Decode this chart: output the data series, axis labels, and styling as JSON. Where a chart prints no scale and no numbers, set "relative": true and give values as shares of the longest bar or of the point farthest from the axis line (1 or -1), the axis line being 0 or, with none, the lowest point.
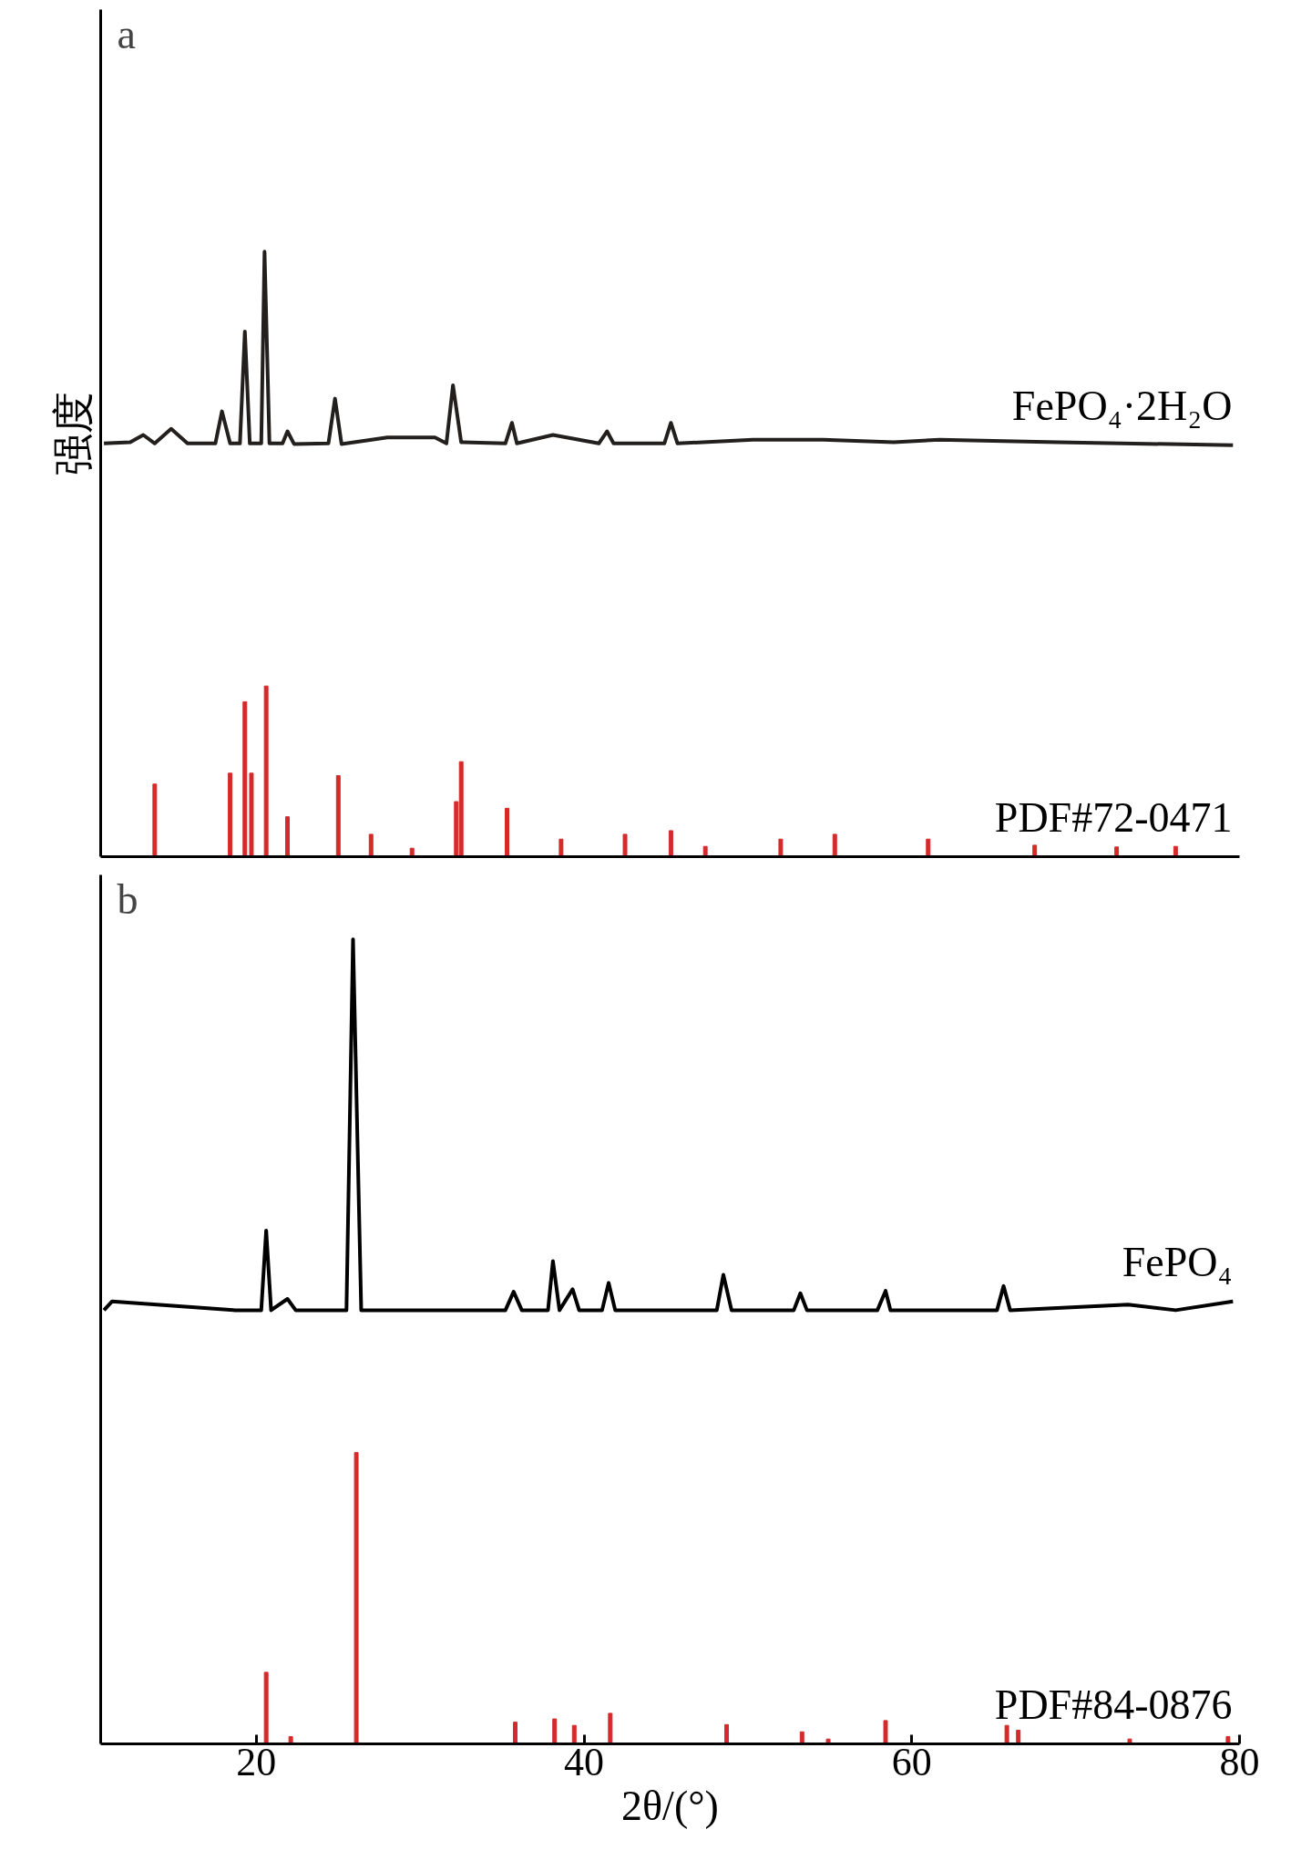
{
  "chart_data": [
    {
      "type": "line",
      "title": "a",
      "ylabel": "强度",
      "relative": true,
      "xlim": [
        10.5,
        80
      ],
      "tick_labels": false,
      "grid": false,
      "series": [
        {
          "name": "FePO₄·2H₂O",
          "color": "#231f1c",
          "x": [
            10.7,
            12.3,
            13.1,
            13.8,
            14.8,
            15.8,
            17.5,
            17.9,
            18.4,
            19.0,
            19.3,
            19.6,
            20.3,
            20.5,
            20.8,
            21.6,
            21.9,
            22.3,
            24.4,
            24.8,
            25.2,
            28.0,
            30.9,
            31.6,
            32.0,
            32.5,
            35.2,
            35.6,
            35.9,
            38.1,
            40.9,
            41.4,
            41.8,
            44.9,
            45.3,
            45.7,
            50.3,
            54.6,
            58.9,
            61.7,
            68.9,
            79.6
          ],
          "values": [
            0.683,
            0.685,
            0.697,
            0.683,
            0.707,
            0.683,
            0.683,
            0.736,
            0.683,
            0.683,
            0.868,
            0.683,
            0.683,
            1.0,
            0.683,
            0.683,
            0.703,
            0.682,
            0.683,
            0.757,
            0.682,
            0.693,
            0.693,
            0.683,
            0.779,
            0.685,
            0.683,
            0.717,
            0.683,
            0.697,
            0.683,
            0.703,
            0.683,
            0.683,
            0.717,
            0.683,
            0.689,
            0.689,
            0.685,
            0.689,
            0.685,
            0.68
          ]
        },
        {
          "name": "PDF#72-0471",
          "type": "bar",
          "color": "#d42a2a",
          "x": [
            13.8,
            18.4,
            19.3,
            19.7,
            20.6,
            21.9,
            25.0,
            27.0,
            29.5,
            32.2,
            32.5,
            35.3,
            38.6,
            42.5,
            45.3,
            47.4,
            52.0,
            55.3,
            61.0,
            67.5,
            72.5,
            76.1
          ],
          "values": [
            0.12,
            0.138,
            0.256,
            0.138,
            0.282,
            0.066,
            0.134,
            0.037,
            0.014,
            0.091,
            0.157,
            0.08,
            0.029,
            0.037,
            0.043,
            0.017,
            0.029,
            0.037,
            0.029,
            0.019,
            0.016,
            0.017
          ]
        }
      ]
    },
    {
      "type": "line",
      "title": "b",
      "xlabel": "2θ/(°)",
      "relative": true,
      "xlim": [
        10.5,
        80
      ],
      "xticks": [
        20,
        40,
        60,
        80
      ],
      "tick_labels": "x",
      "grid": false,
      "series": [
        {
          "name": "FePO₄",
          "color": "#000000",
          "x": [
            10.7,
            11.2,
            18.7,
            20.3,
            20.6,
            20.9,
            21.9,
            22.4,
            25.5,
            25.9,
            26.4,
            35.2,
            35.7,
            36.2,
            37.8,
            38.1,
            38.5,
            39.3,
            39.7,
            41.1,
            41.5,
            41.9,
            48.1,
            48.5,
            49.0,
            52.8,
            53.2,
            53.6,
            57.9,
            58.4,
            58.7,
            65.2,
            65.6,
            66.0,
            73.2,
            76.1,
            79.6
          ],
          "values": [
            0.539,
            0.55,
            0.539,
            0.539,
            0.638,
            0.539,
            0.553,
            0.539,
            0.539,
            1.0,
            0.539,
            0.539,
            0.562,
            0.539,
            0.539,
            0.6,
            0.539,
            0.565,
            0.539,
            0.539,
            0.573,
            0.539,
            0.539,
            0.583,
            0.539,
            0.539,
            0.56,
            0.539,
            0.539,
            0.563,
            0.539,
            0.539,
            0.569,
            0.539,
            0.546,
            0.539,
            0.55
          ]
        },
        {
          "name": "PDF#84-0876",
          "type": "bar",
          "color": "#d42a2a",
          "x": [
            20.6,
            22.1,
            26.1,
            35.8,
            38.2,
            39.4,
            41.6,
            48.7,
            53.3,
            54.9,
            58.4,
            65.8,
            66.5,
            73.3,
            79.3
          ],
          "values": [
            0.089,
            0.009,
            0.362,
            0.027,
            0.031,
            0.023,
            0.038,
            0.024,
            0.015,
            0.006,
            0.029,
            0.023,
            0.017,
            0.006,
            0.009
          ]
        }
      ]
    }
  ]
}
